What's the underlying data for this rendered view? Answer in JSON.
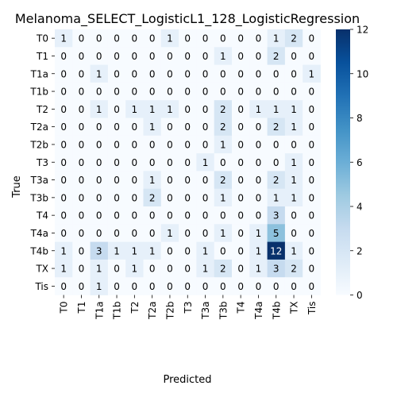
{
  "chart_data": {
    "type": "heatmap",
    "title": "Melanoma_SELECT_LogisticL1_128_LogisticRegression",
    "xlabel": "Predicted",
    "ylabel": "True",
    "x_categories": [
      "T0",
      "T1",
      "T1a",
      "T1b",
      "T2",
      "T2a",
      "T2b",
      "T3",
      "T3a",
      "T3b",
      "T4",
      "T4a",
      "T4b",
      "TX",
      "Tis"
    ],
    "y_categories": [
      "T0",
      "T1",
      "T1a",
      "T1b",
      "T2",
      "T2a",
      "T2b",
      "T3",
      "T3a",
      "T3b",
      "T4",
      "T4a",
      "T4b",
      "TX",
      "Tis"
    ],
    "values": [
      [
        1,
        0,
        0,
        0,
        0,
        0,
        1,
        0,
        0,
        0,
        0,
        0,
        1,
        2,
        0
      ],
      [
        0,
        0,
        0,
        0,
        0,
        0,
        0,
        0,
        0,
        1,
        0,
        0,
        2,
        0,
        0
      ],
      [
        0,
        0,
        1,
        0,
        0,
        0,
        0,
        0,
        0,
        0,
        0,
        0,
        0,
        0,
        1
      ],
      [
        0,
        0,
        0,
        0,
        0,
        0,
        0,
        0,
        0,
        0,
        0,
        0,
        0,
        0,
        0
      ],
      [
        0,
        0,
        1,
        0,
        1,
        1,
        1,
        0,
        0,
        2,
        0,
        1,
        1,
        1,
        0
      ],
      [
        0,
        0,
        0,
        0,
        0,
        1,
        0,
        0,
        0,
        2,
        0,
        0,
        2,
        1,
        0
      ],
      [
        0,
        0,
        0,
        0,
        0,
        0,
        0,
        0,
        0,
        1,
        0,
        0,
        0,
        0,
        0
      ],
      [
        0,
        0,
        0,
        0,
        0,
        0,
        0,
        0,
        1,
        0,
        0,
        0,
        0,
        1,
        0
      ],
      [
        0,
        0,
        0,
        0,
        0,
        1,
        0,
        0,
        0,
        2,
        0,
        0,
        2,
        1,
        0
      ],
      [
        0,
        0,
        0,
        0,
        0,
        2,
        0,
        0,
        0,
        1,
        0,
        0,
        1,
        1,
        0
      ],
      [
        0,
        0,
        0,
        0,
        0,
        0,
        0,
        0,
        0,
        0,
        0,
        0,
        3,
        0,
        0
      ],
      [
        0,
        0,
        0,
        0,
        0,
        0,
        1,
        0,
        0,
        1,
        0,
        1,
        5,
        0,
        0
      ],
      [
        1,
        0,
        3,
        1,
        1,
        1,
        0,
        0,
        1,
        0,
        0,
        1,
        12,
        1,
        0
      ],
      [
        1,
        0,
        1,
        0,
        1,
        0,
        0,
        0,
        1,
        2,
        0,
        1,
        3,
        2,
        0
      ],
      [
        0,
        0,
        1,
        0,
        0,
        0,
        0,
        0,
        0,
        0,
        0,
        0,
        0,
        0,
        0
      ]
    ],
    "colorbar": {
      "min": 0,
      "max": 12,
      "ticks": [
        0,
        2,
        4,
        6,
        8,
        10,
        12
      ],
      "colormap": "Blues"
    },
    "colors": {
      "low": "#f7fbff",
      "high": "#08306b",
      "text_dark": "#000000",
      "text_light": "#ffffff"
    }
  }
}
